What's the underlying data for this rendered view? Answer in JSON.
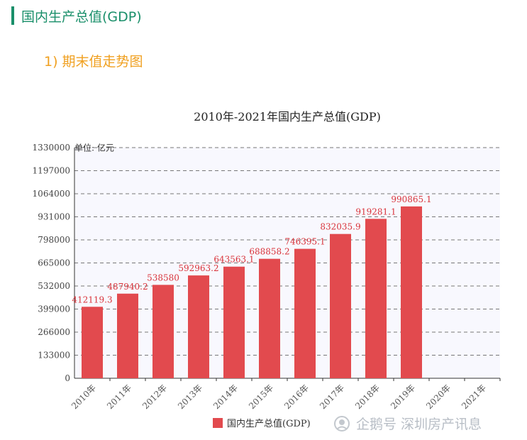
{
  "header": {
    "title": "国内生产总值(GDP)"
  },
  "subheader": {
    "title": "1) 期末值走势图"
  },
  "watermark": {
    "text": "企鹅号 深圳房产讯息"
  },
  "colors": {
    "accent": "#1a8f6a",
    "subtitle": "#f0a020",
    "bar": "#e24a4e",
    "label": "#d9343b"
  },
  "chart_data": {
    "type": "bar",
    "title": "2010年-2021年国内生产总值(GDP)",
    "unit_label": "单位: 亿元",
    "categories": [
      "2010年",
      "2011年",
      "2012年",
      "2013年",
      "2014年",
      "2015年",
      "2016年",
      "2017年",
      "2018年",
      "2019年",
      "2020年",
      "2021年"
    ],
    "series": [
      {
        "name": "国内生产总值(GDP)",
        "values": [
          412119.3,
          487940.2,
          538580,
          592963.2,
          643563.1,
          688858.2,
          746395.1,
          832035.9,
          919281.1,
          990865.1,
          null,
          null
        ],
        "labels": [
          "412119.3",
          "487940.2",
          "538580",
          "592963.2",
          "643563.1",
          "688858.2",
          "746395.1",
          "832035.9",
          "919281.1",
          "990865.1",
          "",
          ""
        ]
      }
    ],
    "yticks": [
      "0",
      "133000",
      "266000",
      "399000",
      "532000",
      "665000",
      "798000",
      "931000",
      "1064000",
      "1197000",
      "1330000"
    ],
    "ylim": [
      0,
      1330000
    ],
    "grid": true,
    "legend_position": "bottom"
  }
}
